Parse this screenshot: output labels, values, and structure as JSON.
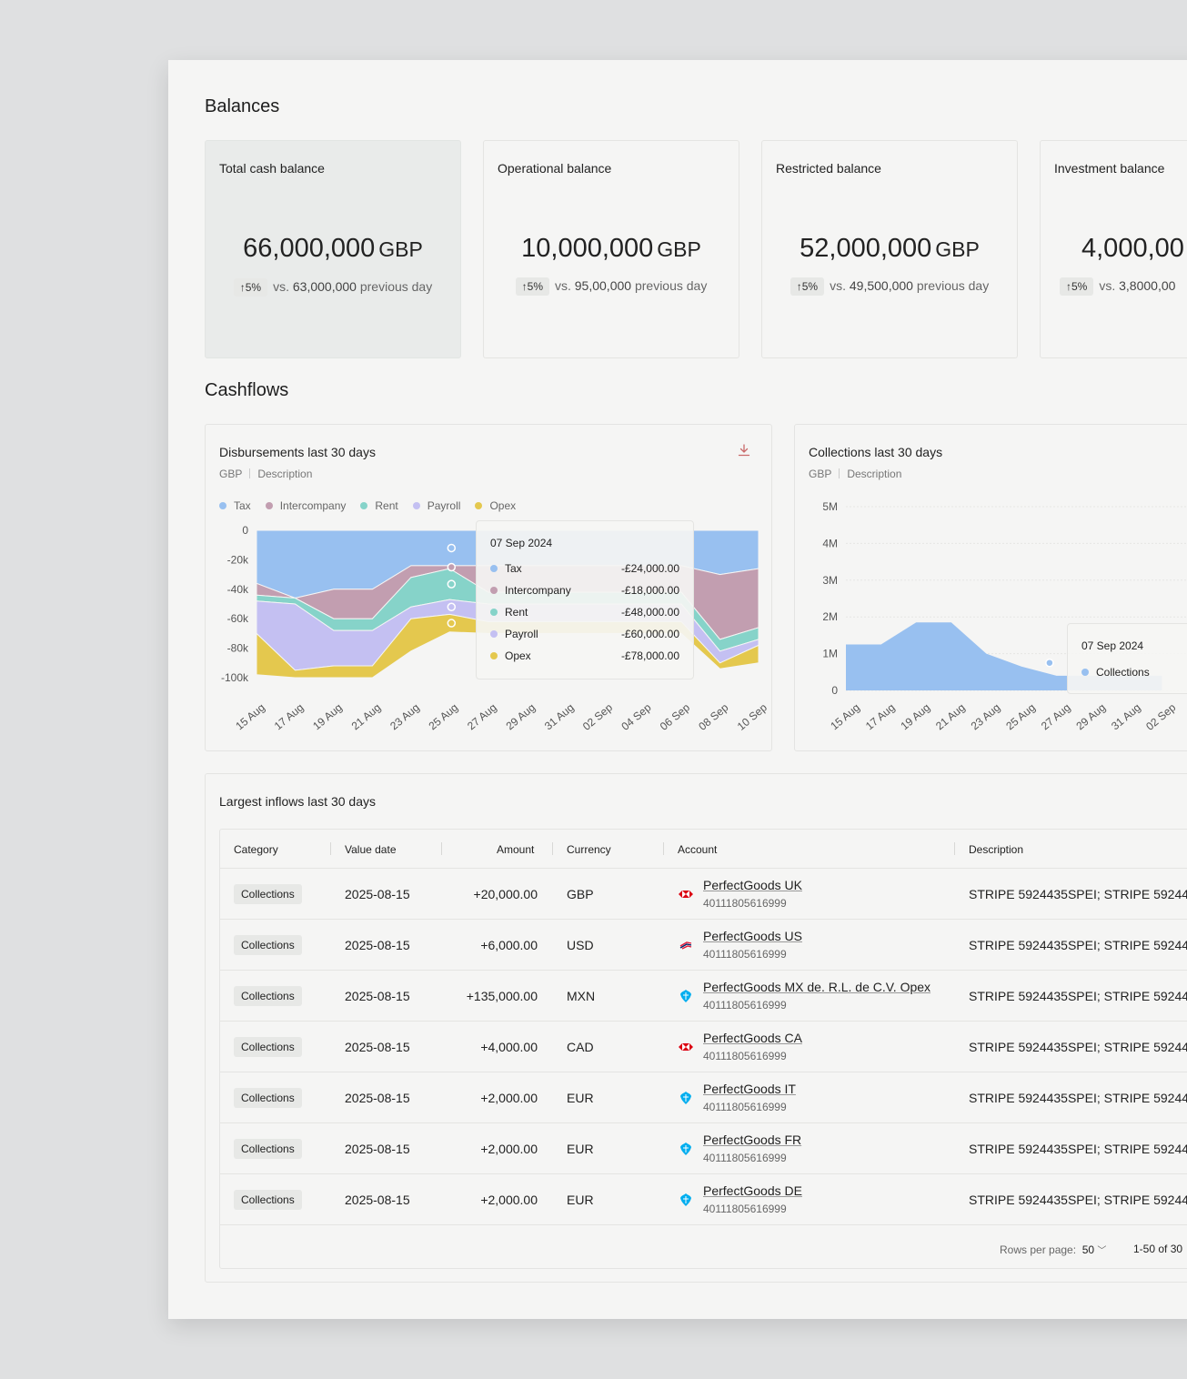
{
  "balances": {
    "title": "Balances",
    "cards": [
      {
        "label": "Total cash balance",
        "value": "66,000,000",
        "currency": "GBP",
        "change": "5%",
        "vs": "vs.",
        "prev": "63,000,000",
        "suffix": "previous day"
      },
      {
        "label": "Operational balance",
        "value": "10,000,000",
        "currency": "GBP",
        "change": "5%",
        "vs": "vs.",
        "prev": "95,00,000",
        "suffix": "previous day"
      },
      {
        "label": "Restricted balance",
        "value": "52,000,000",
        "currency": "GBP",
        "change": "5%",
        "vs": "vs.",
        "prev": "49,500,000",
        "suffix": "previous day"
      },
      {
        "label": "Investment balance",
        "value": "4,000,00",
        "currency": "",
        "change": "5%",
        "vs": "vs.",
        "prev": "3,8000,00",
        "suffix": ""
      }
    ]
  },
  "cashflows": {
    "title": "Cashflows",
    "disbursements": {
      "title": "Disbursements last 30 days",
      "currency": "GBP",
      "description": "Description",
      "tooltip": {
        "date": "07 Sep 2024",
        "rows": [
          {
            "name": "Tax",
            "value": "-£24,000.00",
            "color": "#98c0f0"
          },
          {
            "name": "Intercompany",
            "value": "-£18,000.00",
            "color": "#c29eb0"
          },
          {
            "name": "Rent",
            "value": "-£48,000.00",
            "color": "#86d3c9"
          },
          {
            "name": "Payroll",
            "value": "-£60,000.00",
            "color": "#c4c0f2"
          },
          {
            "name": "Opex",
            "value": "-£78,000.00",
            "color": "#e4c84e"
          }
        ]
      }
    },
    "collections": {
      "title": "Collections last 30 days",
      "currency": "GBP",
      "description": "Description",
      "tooltip": {
        "date": "07 Sep 2024",
        "rows": [
          {
            "name": "Collections",
            "color": "#98c0f0"
          }
        ]
      }
    }
  },
  "chart_data": [
    {
      "type": "area",
      "title": "Disbursements last 30 days",
      "categories": [
        "15 Aug",
        "17 Aug",
        "19 Aug",
        "21 Aug",
        "23 Aug",
        "25 Aug",
        "27 Aug",
        "29 Aug",
        "31 Aug",
        "02 Sep",
        "04 Sep",
        "06 Sep",
        "08 Sep",
        "10 Sep"
      ],
      "yticks": [
        "0",
        "-20k",
        "-40k",
        "-60k",
        "-80k",
        "-100k"
      ],
      "ylim": [
        -100000,
        0
      ],
      "stacked": true,
      "legend_position": "top-left",
      "series": [
        {
          "name": "Tax",
          "color": "#98c0f0",
          "values": [
            -36000,
            -46000,
            -40000,
            -40000,
            -24000,
            -24000,
            -24000,
            -24000,
            -24000,
            -24000,
            -24000,
            -24000,
            -30000,
            -26000
          ]
        },
        {
          "name": "Intercompany",
          "color": "#c29eb0",
          "values": [
            -8000,
            0,
            -20000,
            -20000,
            -8000,
            -2000,
            -18000,
            -18000,
            -18000,
            -18000,
            -18000,
            -18000,
            -44000,
            -40000
          ]
        },
        {
          "name": "Rent",
          "color": "#86d3c9",
          "values": [
            -4000,
            -4000,
            -8000,
            -8000,
            -20000,
            -21000,
            -8000,
            -8000,
            -8000,
            -8000,
            -8000,
            -8000,
            -8000,
            -8000
          ]
        },
        {
          "name": "Payroll",
          "color": "#c4c0f2",
          "values": [
            -22000,
            -45000,
            -24000,
            -24000,
            -8000,
            -10000,
            -12000,
            -12000,
            -12000,
            -12000,
            -12000,
            -12000,
            -8000,
            -4000
          ]
        },
        {
          "name": "Opex",
          "color": "#e4c84e",
          "values": [
            -28000,
            -5000,
            -8000,
            -8000,
            -22000,
            -12000,
            -8000,
            -8000,
            -8000,
            -8000,
            -8000,
            -8000,
            -4000,
            -12000
          ]
        }
      ]
    },
    {
      "type": "area",
      "title": "Collections last 30 days",
      "categories": [
        "15 Aug",
        "17 Aug",
        "19 Aug",
        "21 Aug",
        "23 Aug",
        "25 Aug",
        "27 Aug",
        "29 Aug",
        "31 Aug",
        "02 Sep"
      ],
      "yticks": [
        "5M",
        "4M",
        "3M",
        "2M",
        "1M",
        "0"
      ],
      "ylim": [
        0,
        5000000
      ],
      "series": [
        {
          "name": "Collections",
          "color": "#98c0f0",
          "values": [
            1250000,
            1250000,
            1850000,
            1850000,
            1000000,
            650000,
            400000,
            400000,
            400000,
            400000
          ]
        }
      ]
    }
  ],
  "inflows": {
    "title": "Largest inflows last 30 days",
    "columns": [
      "Category",
      "Value date",
      "Amount",
      "Currency",
      "Account",
      "Description"
    ],
    "rows": [
      {
        "category": "Collections",
        "date": "2025-08-15",
        "amount": "+20,000.00",
        "currency": "GBP",
        "account": "PerfectGoods UK",
        "account_number": "40111805616999",
        "bank_icon": "hsbc-icon",
        "description": "STRIPE 5924435SPEI; STRIPE 59244"
      },
      {
        "category": "Collections",
        "date": "2025-08-15",
        "amount": "+6,000.00",
        "currency": "USD",
        "account": "PerfectGoods US",
        "account_number": "40111805616999",
        "bank_icon": "bank-of-america-icon",
        "description": "STRIPE 5924435SPEI; STRIPE 59244"
      },
      {
        "category": "Collections",
        "date": "2025-08-15",
        "amount": "+135,000.00",
        "currency": "MXN",
        "account": "PerfectGoods MX de. R.L. de C.V. Opex",
        "account_number": "40111805616999",
        "bank_icon": "barclays-icon",
        "description": "STRIPE 5924435SPEI; STRIPE 59244"
      },
      {
        "category": "Collections",
        "date": "2025-08-15",
        "amount": "+4,000.00",
        "currency": "CAD",
        "account": "PerfectGoods CA",
        "account_number": "40111805616999",
        "bank_icon": "hsbc-icon",
        "description": "STRIPE 5924435SPEI; STRIPE 59244"
      },
      {
        "category": "Collections",
        "date": "2025-08-15",
        "amount": "+2,000.00",
        "currency": "EUR",
        "account": "PerfectGoods IT",
        "account_number": "40111805616999",
        "bank_icon": "barclays-icon",
        "description": "STRIPE 5924435SPEI; STRIPE 59244"
      },
      {
        "category": "Collections",
        "date": "2025-08-15",
        "amount": "+2,000.00",
        "currency": "EUR",
        "account": "PerfectGoods FR",
        "account_number": "40111805616999",
        "bank_icon": "barclays-icon",
        "description": "STRIPE 5924435SPEI; STRIPE 59244"
      },
      {
        "category": "Collections",
        "date": "2025-08-15",
        "amount": "+2,000.00",
        "currency": "EUR",
        "account": "PerfectGoods DE",
        "account_number": "40111805616999",
        "bank_icon": "barclays-icon",
        "description": "STRIPE 5924435SPEI; STRIPE 59244"
      }
    ],
    "pagination": {
      "rows_label": "Rows per page:",
      "rows_value": "50",
      "range": "1-50 of 30"
    }
  }
}
